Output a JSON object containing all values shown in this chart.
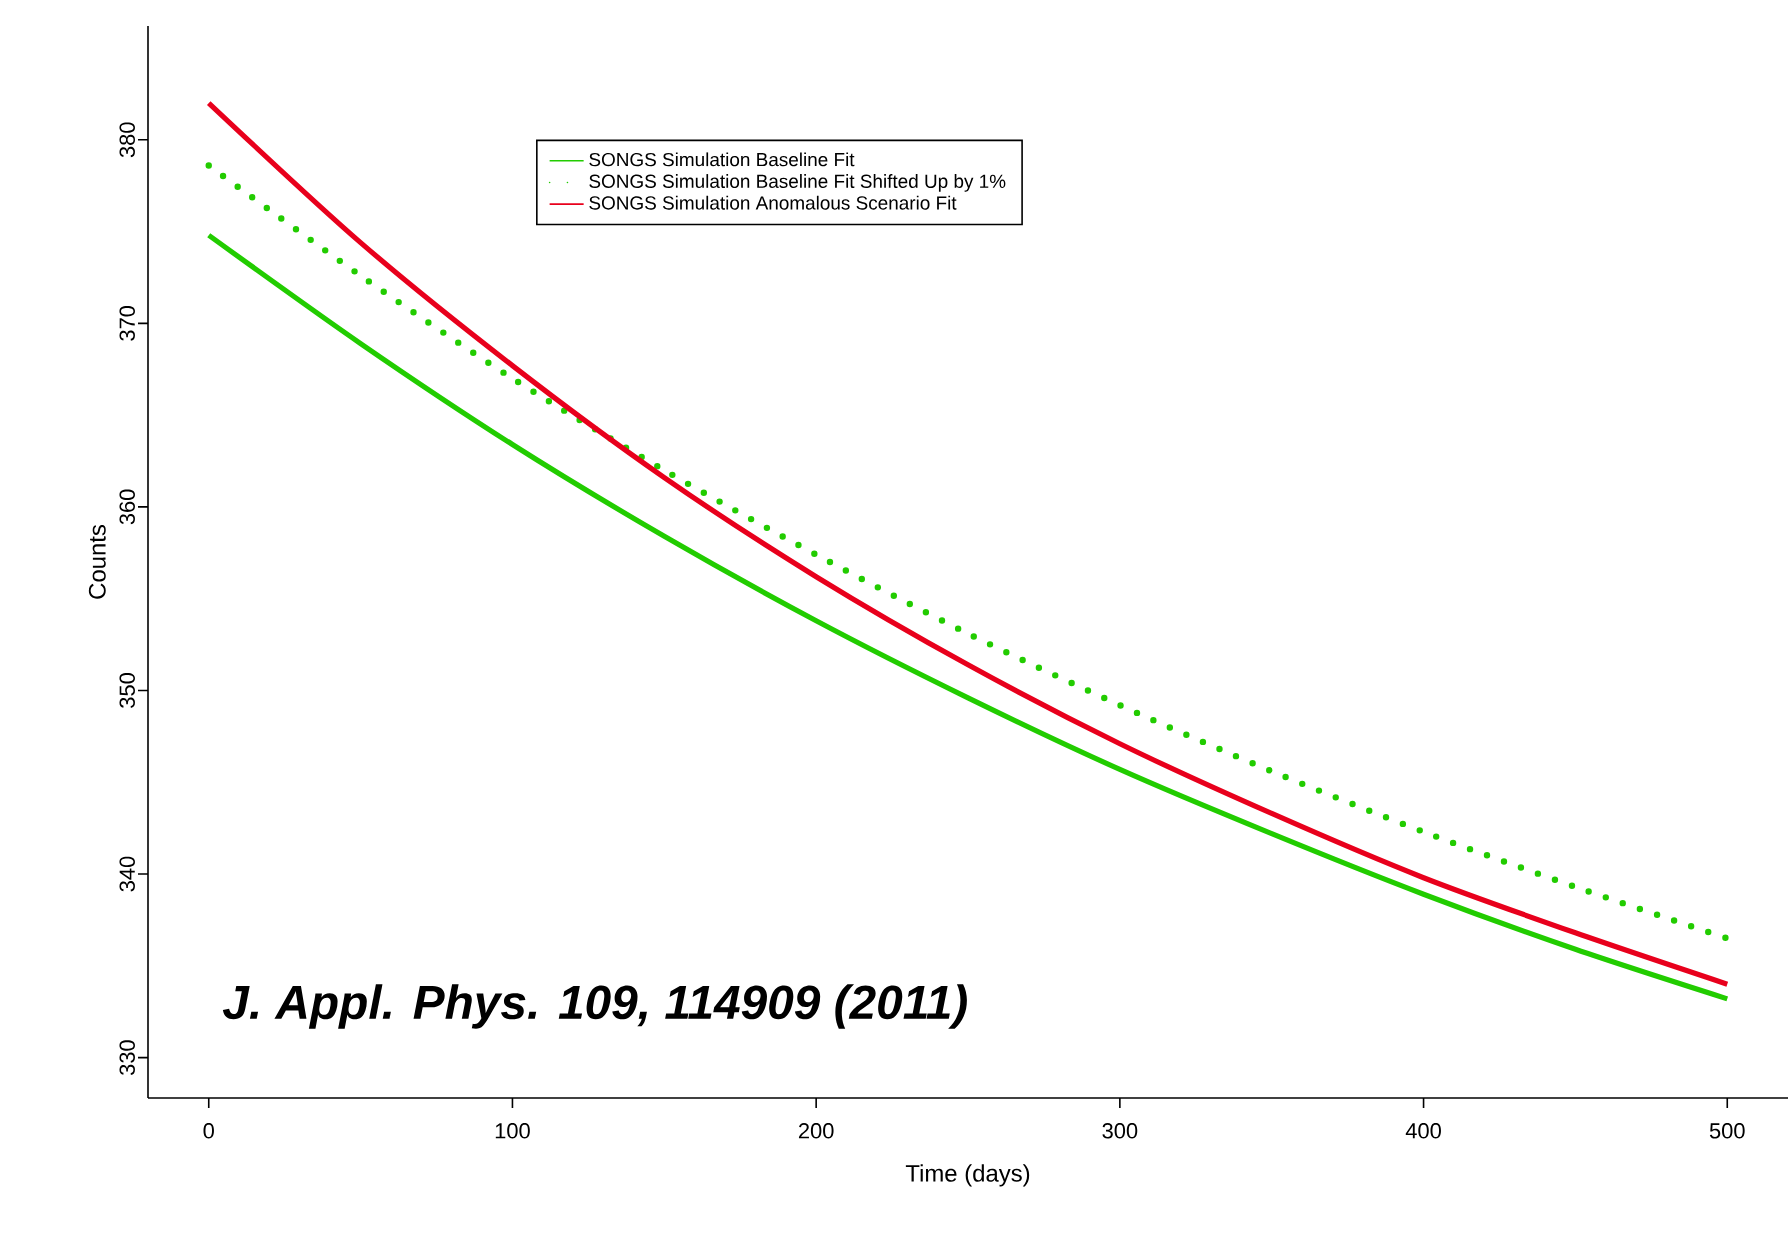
{
  "chart_data": {
    "type": "line",
    "xlabel": "Time (days)",
    "ylabel": "Counts",
    "x": [
      0,
      50,
      100,
      150,
      200,
      250,
      300,
      350,
      400,
      450,
      500
    ],
    "series": [
      {
        "name": "SONGS Simulation Baseline Fit",
        "color": "#22cc00",
        "line_style": "solid",
        "values": [
          374.8,
          368.9,
          363.4,
          358.4,
          353.8,
          349.6,
          345.7,
          342.2,
          338.9,
          335.9,
          333.2
        ]
      },
      {
        "name": "SONGS Simulation Baseline Fit Shifted Up by 1%",
        "color": "#22cc00",
        "line_style": "dotted",
        "values": [
          378.6,
          372.6,
          367.0,
          362.0,
          357.4,
          353.1,
          349.2,
          345.6,
          342.3,
          339.3,
          336.5
        ]
      },
      {
        "name": "SONGS Simulation Anomalous Scenario Fit",
        "color": "#e8001c",
        "line_style": "solid",
        "values": [
          382.0,
          374.4,
          367.7,
          361.6,
          356.2,
          351.4,
          347.1,
          343.3,
          339.8,
          336.8,
          334.0
        ]
      }
    ],
    "xlim": [
      -20,
      520
    ],
    "ylim": [
      327.8,
      386.2
    ],
    "xticks": [
      0,
      100,
      200,
      300,
      400,
      500
    ],
    "yticks": [
      330,
      340,
      350,
      360,
      370,
      380
    ],
    "grid": false,
    "legend": "top",
    "marker": "none",
    "annotations": [
      "J. Appl. Phys. 109, 114909 (2011)"
    ]
  }
}
